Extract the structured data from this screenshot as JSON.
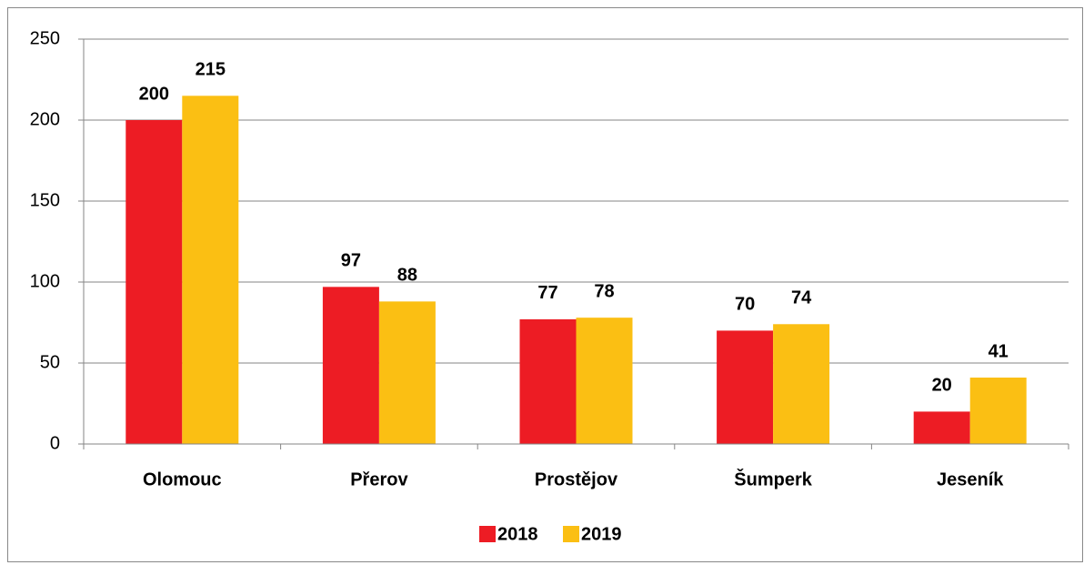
{
  "chart_data": {
    "type": "bar",
    "categories": [
      "Olomouc",
      "Přerov",
      "Prostějov",
      "Šumperk",
      "Jeseník"
    ],
    "series": [
      {
        "name": "2018",
        "color": "#ed1c24",
        "values": [
          200,
          97,
          77,
          70,
          20
        ]
      },
      {
        "name": "2019",
        "color": "#fbbf13",
        "values": [
          215,
          88,
          78,
          74,
          41
        ]
      }
    ],
    "ylim": [
      0,
      250
    ],
    "yticks": [
      0,
      50,
      100,
      150,
      200,
      250
    ],
    "grid": true,
    "legend": "bottom"
  }
}
